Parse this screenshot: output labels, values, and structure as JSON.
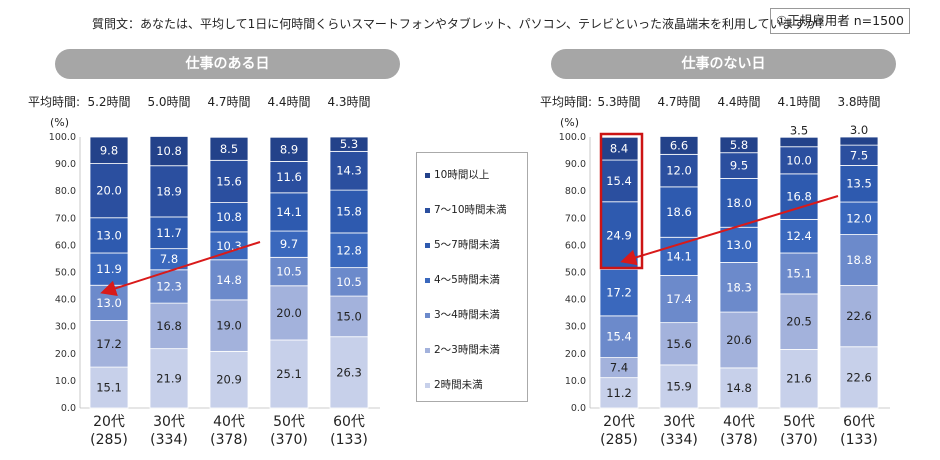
{
  "question": "質問文：あなたは、平均して1日に何時間くらいスマートフォンやタブレット、パソコン、テレビといった液晶端末を利用していますか？",
  "sample_label": "①正規雇用者  n=1500",
  "legend": [
    {
      "label": "10時間以上",
      "color": "#23428a"
    },
    {
      "label": "7～10時間未満",
      "color": "#2b4f9f"
    },
    {
      "label": "5～7時間未満",
      "color": "#2e5aaf"
    },
    {
      "label": "4～5時間未満",
      "color": "#3a68bd"
    },
    {
      "label": "3～4時間未満",
      "color": "#6c8acb"
    },
    {
      "label": "2～3時間未満",
      "color": "#a3b2dc"
    },
    {
      "label": "2時間未満",
      "color": "#c7d0ea"
    }
  ],
  "chart_data": [
    {
      "type": "bar",
      "stacked": true,
      "title": "仕事のある日",
      "ylabel": "(%)",
      "ylim": [
        0,
        100
      ],
      "yticks": [
        "0.0",
        "10.0",
        "20.0",
        "30.0",
        "40.0",
        "50.0",
        "60.0",
        "70.0",
        "80.0",
        "90.0",
        "100.0"
      ],
      "avg_label": "平均時間:",
      "avg_values": [
        "5.2時間",
        "5.0時間",
        "4.7時間",
        "4.4時間",
        "4.3時間"
      ],
      "categories": [
        "20代",
        "30代",
        "40代",
        "50代",
        "60代"
      ],
      "counts": [
        "(285)",
        "(334)",
        "(378)",
        "(370)",
        "(133)"
      ],
      "series": [
        {
          "name": "2時間未満",
          "values": [
            15.1,
            21.9,
            20.9,
            25.1,
            26.3
          ]
        },
        {
          "name": "2～3時間未満",
          "values": [
            17.2,
            16.8,
            19.0,
            20.0,
            15.0
          ]
        },
        {
          "name": "3～4時間未満",
          "values": [
            13.0,
            12.3,
            14.8,
            10.5,
            10.5
          ]
        },
        {
          "name": "4～5時間未満",
          "values": [
            11.9,
            7.8,
            10.3,
            9.7,
            12.8
          ]
        },
        {
          "name": "5～7時間未満",
          "values": [
            13.0,
            11.7,
            10.8,
            14.1,
            15.8
          ]
        },
        {
          "name": "7～10時間未満",
          "values": [
            20.0,
            18.9,
            15.6,
            11.6,
            14.3
          ]
        },
        {
          "name": "10時間以上",
          "values": [
            9.8,
            10.8,
            8.5,
            8.9,
            5.3
          ]
        }
      ]
    },
    {
      "type": "bar",
      "stacked": true,
      "title": "仕事のない日",
      "ylabel": "(%)",
      "ylim": [
        0,
        100
      ],
      "yticks": [
        "0.0",
        "10.0",
        "20.0",
        "30.0",
        "40.0",
        "50.0",
        "60.0",
        "70.0",
        "80.0",
        "90.0",
        "100.0"
      ],
      "avg_label": "平均時間:",
      "avg_values": [
        "5.3時間",
        "4.7時間",
        "4.4時間",
        "4.1時間",
        "3.8時間"
      ],
      "categories": [
        "20代",
        "30代",
        "40代",
        "50代",
        "60代"
      ],
      "counts": [
        "(285)",
        "(334)",
        "(378)",
        "(370)",
        "(133)"
      ],
      "series": [
        {
          "name": "2時間未満",
          "values": [
            11.2,
            15.9,
            14.8,
            21.6,
            22.6
          ]
        },
        {
          "name": "2～3時間未満",
          "values": [
            7.4,
            15.6,
            20.6,
            20.5,
            22.6
          ]
        },
        {
          "name": "3～4時間未満",
          "values": [
            15.4,
            17.4,
            18.3,
            15.1,
            18.8
          ]
        },
        {
          "name": "4～5時間未満",
          "values": [
            17.2,
            14.1,
            13.0,
            12.4,
            12.0
          ]
        },
        {
          "name": "5～7時間未満",
          "values": [
            24.9,
            18.6,
            18.0,
            16.8,
            13.5
          ]
        },
        {
          "name": "7～10時間未満",
          "values": [
            15.4,
            12.0,
            9.5,
            10.0,
            7.5
          ]
        },
        {
          "name": "10時間以上",
          "values": [
            8.4,
            6.6,
            5.8,
            3.5,
            3.0
          ]
        }
      ]
    }
  ]
}
